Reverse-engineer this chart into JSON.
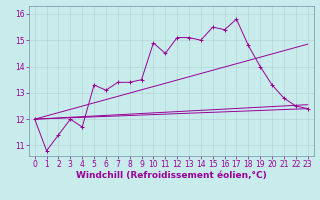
{
  "xlabel": "Windchill (Refroidissement éolien,°C)",
  "bg_color": "#c8ecec",
  "line_color": "#990099",
  "grid_color": "#b0d0d0",
  "xlim": [
    -0.5,
    23.5
  ],
  "ylim": [
    10.6,
    16.3
  ],
  "xticks": [
    0,
    1,
    2,
    3,
    4,
    5,
    6,
    7,
    8,
    9,
    10,
    11,
    12,
    13,
    14,
    15,
    16,
    17,
    18,
    19,
    20,
    21,
    22,
    23
  ],
  "yticks": [
    11,
    12,
    13,
    14,
    15,
    16
  ],
  "line1_x": [
    0,
    1,
    2,
    3,
    4,
    5,
    6,
    7,
    8,
    9,
    10,
    11,
    12,
    13,
    14,
    15,
    16,
    17,
    18,
    19,
    20,
    21,
    22,
    23
  ],
  "line1_y": [
    12.0,
    10.8,
    11.4,
    12.0,
    11.7,
    13.3,
    13.1,
    13.4,
    13.4,
    13.5,
    14.9,
    14.5,
    15.1,
    15.1,
    15.0,
    15.5,
    15.4,
    15.8,
    14.8,
    14.0,
    13.3,
    12.8,
    12.5,
    12.4
  ],
  "straight_lines": [
    {
      "x": [
        0,
        23
      ],
      "y": [
        12.0,
        12.4
      ]
    },
    {
      "x": [
        0,
        23
      ],
      "y": [
        12.0,
        12.55
      ]
    },
    {
      "x": [
        0,
        23
      ],
      "y": [
        12.0,
        14.85
      ]
    }
  ],
  "tick_font_size": 5.5,
  "xlabel_font_size": 6.5
}
